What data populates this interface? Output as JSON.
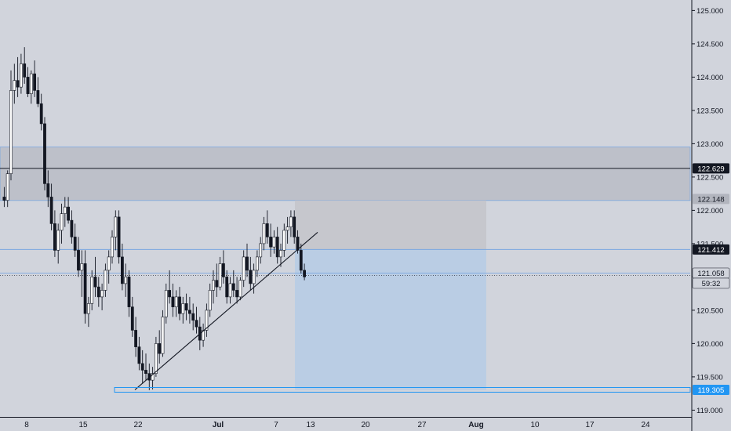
{
  "chart_data": {
    "type": "candlestick",
    "ylim": [
      118.84,
      125.08
    ],
    "y_ticks": [
      "119.000",
      "119.500",
      "120.000",
      "120.500",
      "121.000",
      "121.500",
      "122.000",
      "122.500",
      "123.000",
      "123.500",
      "124.000",
      "124.500",
      "125.000"
    ],
    "x_ticks": [
      "8",
      "15",
      "22",
      "Jul",
      "7",
      "13",
      "20",
      "27",
      "Aug",
      "10",
      "17",
      "24"
    ],
    "colors": {
      "background": "#d1d4dc",
      "candle_up": "#ffffff",
      "candle_down": "#131722",
      "zone": "#b2b5be",
      "stop_box": "#c4c5cb",
      "target_box": "#b7cce4",
      "level_line": "#7aa7e0",
      "trend": "#131722",
      "highlight": "#2196f3"
    },
    "resistance_zone": {
      "from": 122.148,
      "to": 122.95
    },
    "horizontal_lines": [
      122.629,
      121.412,
      121.058
    ],
    "trend_line": {
      "from": [
        119.305
      ],
      "to": [
        121.67
      ]
    },
    "support_rect": {
      "value": 119.305
    },
    "short_position": {
      "entry": 121.412,
      "stop": 122.148,
      "target": 119.305
    },
    "price_labels": [
      {
        "id": "resistance",
        "text": "122.629",
        "value": 122.629
      },
      {
        "id": "zone",
        "text": "122.148",
        "value": 122.148
      },
      {
        "id": "entry",
        "text": "121.412",
        "value": 121.412
      },
      {
        "id": "last",
        "text": "121.058",
        "value": 121.058
      },
      {
        "id": "countdown",
        "text": "59:32",
        "value": 121.058
      },
      {
        "id": "target",
        "text": "119.305",
        "value": 119.305
      }
    ],
    "candles_ohlc": [
      [
        122.2,
        122.35,
        122.05,
        122.15
      ],
      [
        122.15,
        122.6,
        122.05,
        122.55
      ],
      [
        122.55,
        124.1,
        122.45,
        123.8
      ],
      [
        123.8,
        124.2,
        123.6,
        123.95
      ],
      [
        123.95,
        124.3,
        123.7,
        123.85
      ],
      [
        123.85,
        124.35,
        123.75,
        124.2
      ],
      [
        124.2,
        124.45,
        123.9,
        124.0
      ],
      [
        124.0,
        124.15,
        123.7,
        123.75
      ],
      [
        123.75,
        124.1,
        123.6,
        124.05
      ],
      [
        124.05,
        124.25,
        123.7,
        123.8
      ],
      [
        123.8,
        124.0,
        123.55,
        123.6
      ],
      [
        123.6,
        123.75,
        123.2,
        123.3
      ],
      [
        123.3,
        123.4,
        122.3,
        122.4
      ],
      [
        122.4,
        122.6,
        122.05,
        122.2
      ],
      [
        122.2,
        122.4,
        121.7,
        121.8
      ],
      [
        121.8,
        122.0,
        121.3,
        121.4
      ],
      [
        121.4,
        121.8,
        121.2,
        121.7
      ],
      [
        121.7,
        122.1,
        121.5,
        121.95
      ],
      [
        121.95,
        122.2,
        121.75,
        122.05
      ],
      [
        122.05,
        122.2,
        121.8,
        121.85
      ],
      [
        121.85,
        122.0,
        121.5,
        121.6
      ],
      [
        121.6,
        121.8,
        121.3,
        121.4
      ],
      [
        121.4,
        121.6,
        121.0,
        121.1
      ],
      [
        121.1,
        121.4,
        120.7,
        121.2
      ],
      [
        121.2,
        121.4,
        120.3,
        120.45
      ],
      [
        120.45,
        120.7,
        120.25,
        120.6
      ],
      [
        120.6,
        121.1,
        120.5,
        121.0
      ],
      [
        121.0,
        121.3,
        120.7,
        120.85
      ],
      [
        120.85,
        121.0,
        120.55,
        120.7
      ],
      [
        120.7,
        120.9,
        120.5,
        120.8
      ],
      [
        120.8,
        121.2,
        120.7,
        121.1
      ],
      [
        121.1,
        121.4,
        120.9,
        121.3
      ],
      [
        121.3,
        121.7,
        121.2,
        121.6
      ],
      [
        121.6,
        122.0,
        121.4,
        121.9
      ],
      [
        121.9,
        122.0,
        121.2,
        121.3
      ],
      [
        121.3,
        121.5,
        120.8,
        120.9
      ],
      [
        120.9,
        121.2,
        120.7,
        121.0
      ],
      [
        121.0,
        121.1,
        120.4,
        120.55
      ],
      [
        120.55,
        120.7,
        120.1,
        120.2
      ],
      [
        120.2,
        120.4,
        119.8,
        119.95
      ],
      [
        119.95,
        120.1,
        119.6,
        119.7
      ],
      [
        119.7,
        119.9,
        119.4,
        119.6
      ],
      [
        119.6,
        119.85,
        119.45,
        119.55
      ],
      [
        119.55,
        119.7,
        119.3,
        119.45
      ],
      [
        119.45,
        119.65,
        119.31,
        119.55
      ],
      [
        119.55,
        120.1,
        119.5,
        120.0
      ],
      [
        120.0,
        120.2,
        119.7,
        119.85
      ],
      [
        119.85,
        120.5,
        119.8,
        120.4
      ],
      [
        120.4,
        120.9,
        120.3,
        120.8
      ],
      [
        120.8,
        121.1,
        120.6,
        120.7
      ],
      [
        120.7,
        120.9,
        120.4,
        120.55
      ],
      [
        120.55,
        120.8,
        120.4,
        120.7
      ],
      [
        120.7,
        120.85,
        120.35,
        120.45
      ],
      [
        120.45,
        120.7,
        120.3,
        120.6
      ],
      [
        120.6,
        120.75,
        120.35,
        120.5
      ],
      [
        120.5,
        120.7,
        120.3,
        120.45
      ],
      [
        120.45,
        120.6,
        120.2,
        120.35
      ],
      [
        120.35,
        120.55,
        120.15,
        120.25
      ],
      [
        120.25,
        120.4,
        119.9,
        120.05
      ],
      [
        120.05,
        120.3,
        119.95,
        120.2
      ],
      [
        120.2,
        120.6,
        120.1,
        120.5
      ],
      [
        120.5,
        120.9,
        120.4,
        120.8
      ],
      [
        120.8,
        121.1,
        120.6,
        120.95
      ],
      [
        120.95,
        121.2,
        120.7,
        120.85
      ],
      [
        120.85,
        121.3,
        120.8,
        121.2
      ],
      [
        121.2,
        121.4,
        120.9,
        121.0
      ],
      [
        121.0,
        121.1,
        120.6,
        120.7
      ],
      [
        120.7,
        121.0,
        120.6,
        120.9
      ],
      [
        120.9,
        121.1,
        120.7,
        120.8
      ],
      [
        120.8,
        121.0,
        120.6,
        120.7
      ],
      [
        120.7,
        121.0,
        120.65,
        120.95
      ],
      [
        120.95,
        121.4,
        120.85,
        121.3
      ],
      [
        121.3,
        121.5,
        121.0,
        121.1
      ],
      [
        121.1,
        121.3,
        120.8,
        120.9
      ],
      [
        120.9,
        121.2,
        120.75,
        121.1
      ],
      [
        121.1,
        121.4,
        121.0,
        121.3
      ],
      [
        121.3,
        121.6,
        121.2,
        121.5
      ],
      [
        121.5,
        121.9,
        121.4,
        121.8
      ],
      [
        121.8,
        122.0,
        121.5,
        121.6
      ],
      [
        121.6,
        121.8,
        121.3,
        121.45
      ],
      [
        121.45,
        121.7,
        121.35,
        121.6
      ],
      [
        121.6,
        121.75,
        121.2,
        121.3
      ],
      [
        121.3,
        121.5,
        121.15,
        121.4
      ],
      [
        121.4,
        121.8,
        121.3,
        121.7
      ],
      [
        121.7,
        121.9,
        121.5,
        121.75
      ],
      [
        121.75,
        122.0,
        121.6,
        121.9
      ],
      [
        121.9,
        122.0,
        121.5,
        121.6
      ],
      [
        121.6,
        121.7,
        121.35,
        121.4
      ],
      [
        121.4,
        121.5,
        121.05,
        121.1
      ],
      [
        121.1,
        121.2,
        120.95,
        121.0
      ]
    ]
  }
}
